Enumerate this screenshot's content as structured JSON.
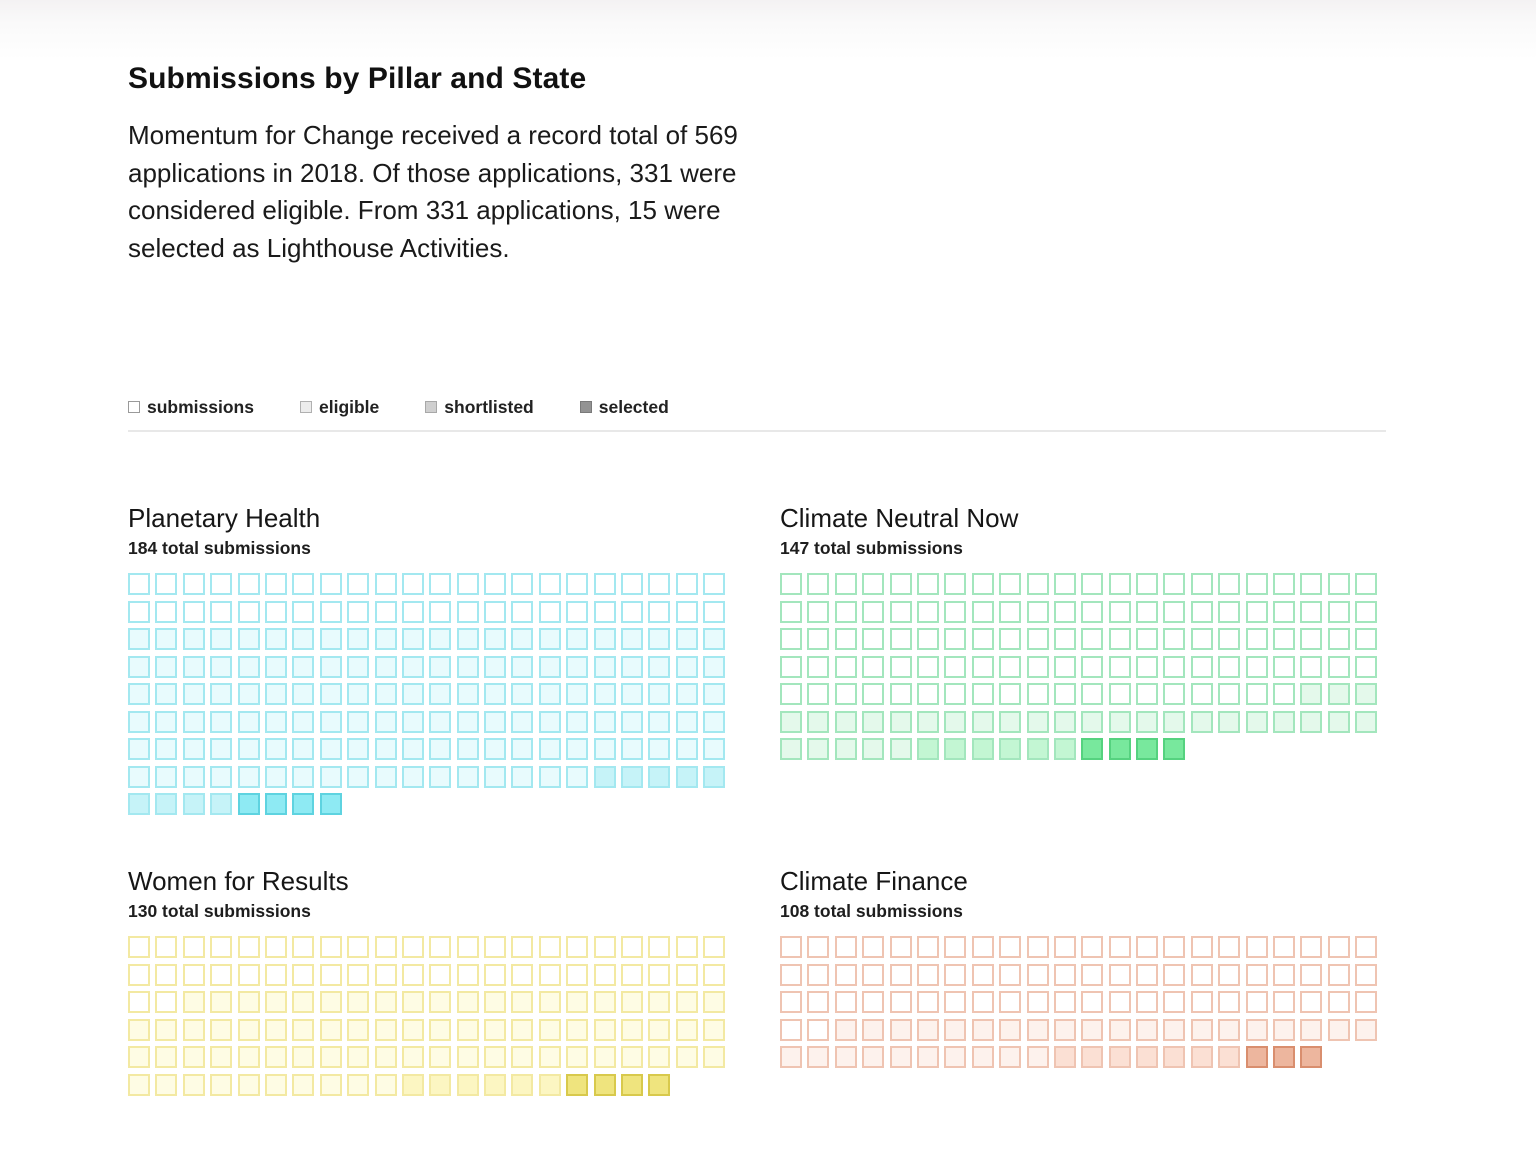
{
  "header": {
    "title": "Submissions by Pillar and State",
    "intro": "Momentum for Change received a record total of 569 applications in 2018. Of those applications, 331 were considered eligible. From 331 applications, 15 were selected as Lighthouse Activities."
  },
  "legend": [
    {
      "key": "submissions",
      "label": "submissions",
      "fill": "#ffffff",
      "border": "#9a9a9a"
    },
    {
      "key": "eligible",
      "label": "eligible",
      "fill": "#ececec",
      "border": "#b0b0b0"
    },
    {
      "key": "shortlisted",
      "label": "shortlisted",
      "fill": "#cfcfcf",
      "border": "#a8a8a8"
    },
    {
      "key": "selected",
      "label": "selected",
      "fill": "#939393",
      "border": "#7a7a7a"
    }
  ],
  "chart_data": {
    "type": "waffle",
    "title": "Submissions by Pillar and State",
    "columns_per_row": 22,
    "state_order": [
      "submissions",
      "eligible",
      "shortlisted",
      "selected"
    ],
    "pillars": [
      {
        "name": "Planetary Health",
        "total_label": "184 total submissions",
        "total": 184,
        "counts": {
          "submissions": 44,
          "eligible": 127,
          "shortlisted": 9,
          "selected": 4
        },
        "colors": {
          "border": "#a3e8f0",
          "submissions": "#ffffff",
          "eligible": "#e8fbfd",
          "shortlisted": "#c6f3f8",
          "selected": "#8eeaf3",
          "selected_border": "#5ed3e0"
        }
      },
      {
        "name": "Climate Neutral Now",
        "total_label": "147 total submissions",
        "total": 147,
        "counts": {
          "submissions": 107,
          "eligible": 30,
          "shortlisted": 6,
          "selected": 4
        },
        "colors": {
          "border": "#a3e6bd",
          "submissions": "#ffffff",
          "eligible": "#e4f9eb",
          "shortlisted": "#c3f6d3",
          "selected": "#78e89d",
          "selected_border": "#55d27f"
        }
      },
      {
        "name": "Women for Results",
        "total_label": "130 total submissions",
        "total": 130,
        "counts": {
          "submissions": 46,
          "eligible": 74,
          "shortlisted": 6,
          "selected": 4
        },
        "colors": {
          "border": "#f3e9a2",
          "submissions": "#ffffff",
          "eligible": "#fefce4",
          "shortlisted": "#fcf6c2",
          "selected": "#efe47e",
          "selected_border": "#d8c94c"
        }
      },
      {
        "name": "Climate Finance",
        "total_label": "108 total submissions",
        "total": 108,
        "counts": {
          "submissions": 68,
          "eligible": 30,
          "shortlisted": 7,
          "selected": 3
        },
        "colors": {
          "border": "#efc4b2",
          "submissions": "#ffffff",
          "eligible": "#fdf2ed",
          "shortlisted": "#fbe0d4",
          "selected": "#edb69e",
          "selected_border": "#d98e6e"
        }
      }
    ]
  }
}
